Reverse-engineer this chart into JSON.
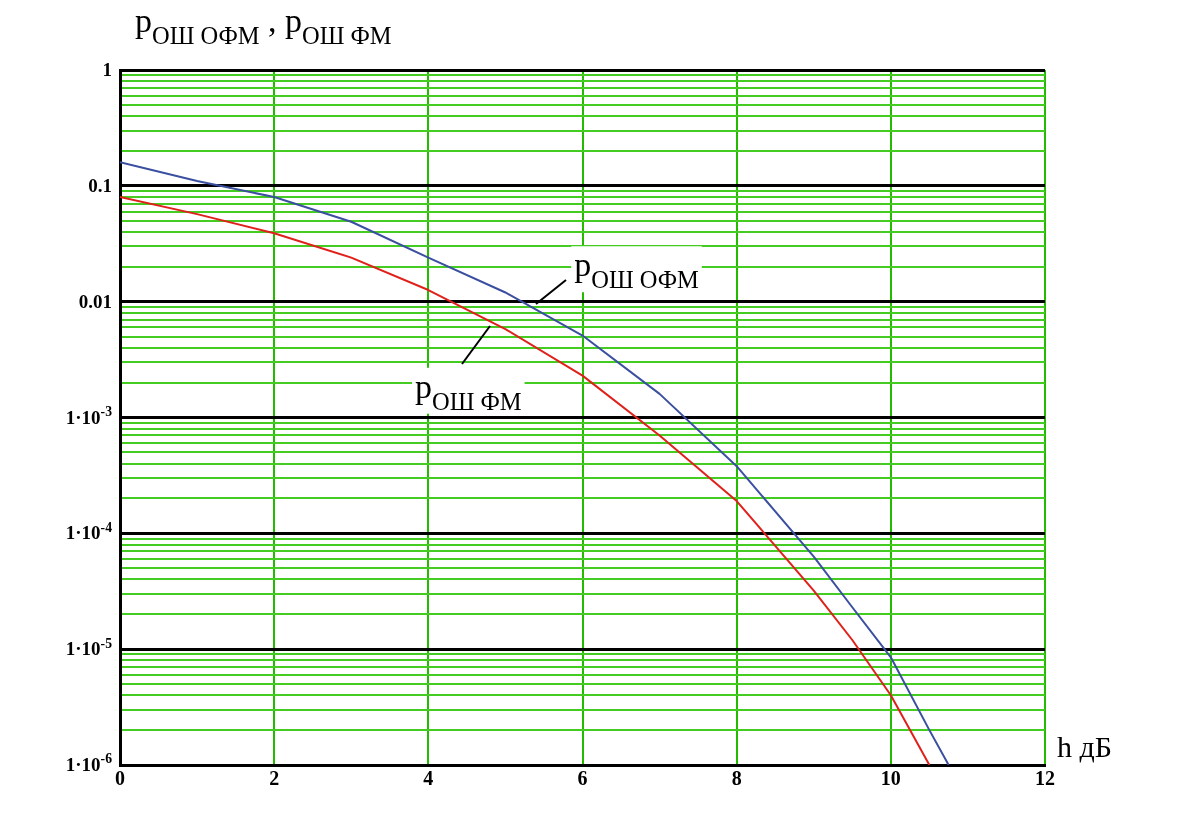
{
  "chart_data": {
    "type": "line",
    "ylabel": "p$_{ОШ ОФМ}$ , p$_{ОШ ФМ}$",
    "xlabel": "h дБ",
    "log": "y",
    "grid": true,
    "legend": false,
    "marker": "none",
    "line_style": "solid",
    "xlim": [
      0,
      12
    ],
    "xticks": [
      0,
      2,
      4,
      6,
      8,
      10,
      12
    ],
    "ylim": [
      1e-06,
      1
    ],
    "yticks": [
      {
        "value": 1e-06,
        "label": "1·10$^{-6}$"
      },
      {
        "value": 2e-06,
        "label": null
      },
      {
        "value": 3e-06,
        "label": null
      },
      {
        "value": 4e-06,
        "label": null
      },
      {
        "value": 5e-06,
        "label": null
      },
      {
        "value": 6e-06,
        "label": null
      },
      {
        "value": 7e-06,
        "label": null
      },
      {
        "value": 8e-06,
        "label": null
      },
      {
        "value": 9e-06,
        "label": null
      },
      {
        "value": 1e-05,
        "label": "1·10$^{-5}$"
      },
      {
        "value": 2e-05,
        "label": null
      },
      {
        "value": 3e-05,
        "label": null
      },
      {
        "value": 4e-05,
        "label": null
      },
      {
        "value": 5e-05,
        "label": null
      },
      {
        "value": 6e-05,
        "label": null
      },
      {
        "value": 7e-05,
        "label": null
      },
      {
        "value": 8e-05,
        "label": null
      },
      {
        "value": 9e-05,
        "label": null
      },
      {
        "value": 0.0001,
        "label": "1·10$^{-4}$"
      },
      {
        "value": 0.0002,
        "label": null
      },
      {
        "value": 0.0003,
        "label": null
      },
      {
        "value": 0.0004,
        "label": null
      },
      {
        "value": 0.0005,
        "label": null
      },
      {
        "value": 0.0006,
        "label": null
      },
      {
        "value": 0.0007,
        "label": null
      },
      {
        "value": 0.0008,
        "label": null
      },
      {
        "value": 0.0009,
        "label": null
      },
      {
        "value": 0.001,
        "label": "1·10$^{-3}$"
      },
      {
        "value": 0.002,
        "label": null
      },
      {
        "value": 0.003,
        "label": null
      },
      {
        "value": 0.004,
        "label": null
      },
      {
        "value": 0.005,
        "label": null
      },
      {
        "value": 0.006,
        "label": null
      },
      {
        "value": 0.007,
        "label": null
      },
      {
        "value": 0.008,
        "label": null
      },
      {
        "value": 0.009,
        "label": null
      },
      {
        "value": 0.01,
        "label": "0.01"
      },
      {
        "value": 0.02,
        "label": null
      },
      {
        "value": 0.03,
        "label": null
      },
      {
        "value": 0.04,
        "label": null
      },
      {
        "value": 0.05,
        "label": null
      },
      {
        "value": 0.06,
        "label": null
      },
      {
        "value": 0.07,
        "label": null
      },
      {
        "value": 0.08,
        "label": null
      },
      {
        "value": 0.09,
        "label": null
      },
      {
        "value": 0.1,
        "label": "0.1"
      },
      {
        "value": 0.2,
        "label": null
      },
      {
        "value": 0.3,
        "label": null
      },
      {
        "value": 0.4,
        "label": null
      },
      {
        "value": 0.5,
        "label": null
      },
      {
        "value": 0.6,
        "label": null
      },
      {
        "value": 0.7,
        "label": null
      },
      {
        "value": 0.8,
        "label": null
      },
      {
        "value": 0.9,
        "label": null
      },
      {
        "value": 1,
        "label": "1"
      }
    ],
    "series": [
      {
        "color": "#3a4fa0",
        "x": [
          0,
          1,
          2,
          3,
          4,
          5,
          6,
          7,
          8,
          9,
          9.5,
          10,
          10.5,
          10.75
        ],
        "values": [
          0.16,
          0.11,
          0.08,
          0.049,
          0.024,
          0.012,
          0.0051,
          0.0016,
          0.00038,
          6.3e-05,
          2.3e-05,
          8.5e-06,
          2e-06,
          1e-06
        ]
      },
      {
        "color": "#e0201a",
        "x": [
          0,
          1,
          2,
          3,
          4,
          5,
          6,
          7,
          8,
          9,
          9.5,
          10,
          10.5
        ],
        "values": [
          0.08,
          0.057,
          0.039,
          0.024,
          0.0126,
          0.0058,
          0.0023,
          0.0007,
          0.00019,
          3.2e-05,
          1.2e-05,
          4e-06,
          1e-06
        ]
      }
    ],
    "annotations": [
      {
        "text": "p$_{ОШ ОФМ}$",
        "x": 5.4,
        "y": 0.0095
      },
      {
        "text": "p$_{ОШ ФМ}$",
        "x": 4.8,
        "y": 0.0062
      }
    ]
  }
}
